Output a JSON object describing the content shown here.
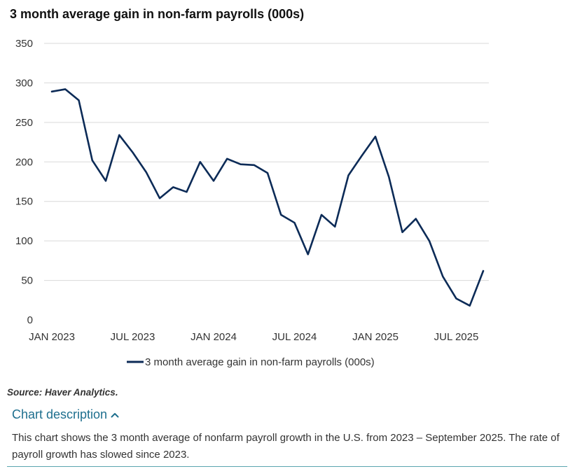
{
  "title": "3 month average gain in non-farm  payrolls (000s)",
  "source": "Source: Haver Analytics.",
  "description": {
    "toggle_label": "Chart description",
    "toggle_icon": "chevron-up-icon",
    "text": "This chart shows the 3 month average of nonfarm payroll growth in the U.S. from 2023 – September 2025. The rate of payroll growth has slowed since 2023."
  },
  "colors": {
    "line": "#0c2b57",
    "grid": "#d9d9d9",
    "link": "#1e6f8e"
  },
  "chart_data": {
    "type": "line",
    "title": "3 month average gain in non-farm  payrolls (000s)",
    "xlabel": "",
    "ylabel": "",
    "ylim": [
      0,
      350
    ],
    "yticks": [
      0,
      50,
      100,
      150,
      200,
      250,
      300,
      350
    ],
    "grid": true,
    "legend_position": "bottom-center",
    "x": [
      "2023-01",
      "2023-02",
      "2023-03",
      "2023-04",
      "2023-05",
      "2023-06",
      "2023-07",
      "2023-08",
      "2023-09",
      "2023-10",
      "2023-11",
      "2023-12",
      "2024-01",
      "2024-02",
      "2024-03",
      "2024-04",
      "2024-05",
      "2024-06",
      "2024-07",
      "2024-08",
      "2024-09",
      "2024-10",
      "2024-11",
      "2024-12",
      "2025-01",
      "2025-02",
      "2025-03",
      "2025-04",
      "2025-05",
      "2025-06",
      "2025-07",
      "2025-08",
      "2025-09"
    ],
    "xticks": [
      {
        "index": 0,
        "label": "JAN 2023"
      },
      {
        "index": 6,
        "label": "JUL 2023"
      },
      {
        "index": 12,
        "label": "JAN 2024"
      },
      {
        "index": 18,
        "label": "JUL 2024"
      },
      {
        "index": 24,
        "label": "JAN 2025"
      },
      {
        "index": 30,
        "label": "JUL 2025"
      }
    ],
    "series": [
      {
        "name": "3 month average gain in non-farm payrolls (000s)",
        "values": [
          289,
          292,
          278,
          202,
          176,
          234,
          212,
          187,
          154,
          168,
          162,
          200,
          176,
          204,
          197,
          196,
          186,
          133,
          123,
          83,
          133,
          118,
          183,
          208,
          232,
          181,
          111,
          128,
          100,
          55,
          27,
          18,
          62
        ]
      }
    ]
  }
}
